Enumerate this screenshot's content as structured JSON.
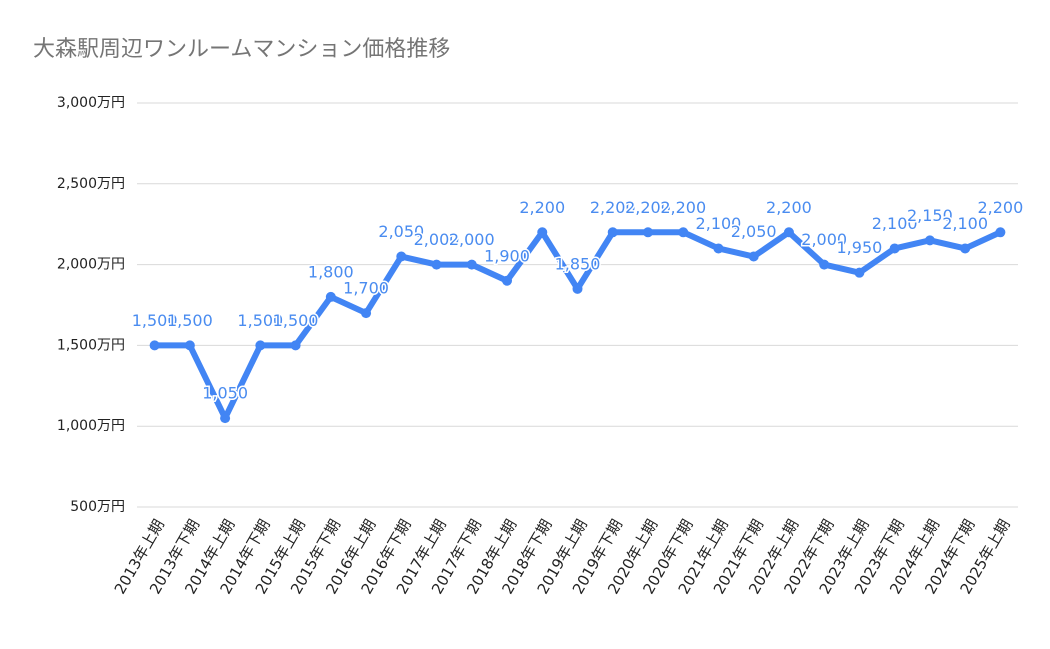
{
  "chart_data": {
    "type": "line",
    "title": "大森駅周辺ワンルームマンション価格推移",
    "categories": [
      "2013年上期",
      "2013年下期",
      "2014年上期",
      "2014年下期",
      "2015年上期",
      "2015年下期",
      "2016年上期",
      "2016年下期",
      "2017年上期",
      "2017年下期",
      "2018年上期",
      "2018年下期",
      "2019年上期",
      "2019年下期",
      "2020年上期",
      "2020年下期",
      "2021年上期",
      "2021年下期",
      "2022年上期",
      "2022年下期",
      "2023年上期",
      "2023年下期",
      "2024年上期",
      "2024年下期",
      "2025年上期"
    ],
    "values": [
      1500,
      1500,
      1050,
      1500,
      1500,
      1800,
      1700,
      2050,
      2000,
      2000,
      1900,
      2200,
      1850,
      2200,
      2200,
      2200,
      2100,
      2050,
      2200,
      2000,
      1950,
      2100,
      2150,
      2100,
      2200
    ],
    "value_labels": [
      "1,500",
      "1,500",
      "1,050",
      "1,500",
      "1,500",
      "1,800",
      "1,700",
      "2,050",
      "2,000",
      "2,000",
      "1,900",
      "2,200",
      "1,850",
      "2,200",
      "2,200",
      "2,200",
      "2,100",
      "2,050",
      "2,200",
      "2,000",
      "1,950",
      "2,100",
      "2,150",
      "2,100",
      "2,200"
    ],
    "color": "#4285f4",
    "ylim": [
      500,
      3000
    ],
    "yticks": [
      {
        "value": 500,
        "label": "500万円"
      },
      {
        "value": 1000,
        "label": "1,000万円"
      },
      {
        "value": 1500,
        "label": "1,500万円"
      },
      {
        "value": 2000,
        "label": "2,000万円"
      },
      {
        "value": 2500,
        "label": "2,500万円"
      },
      {
        "value": 3000,
        "label": "3,000万円"
      }
    ],
    "grid": true
  }
}
